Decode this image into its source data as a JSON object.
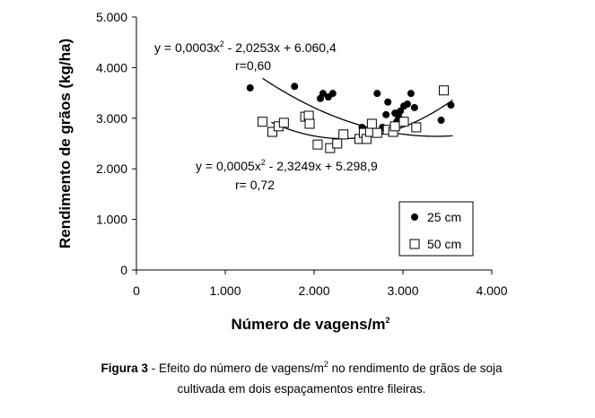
{
  "chart_data": {
    "type": "scatter",
    "y_label": "Rendimento de grãos (kg/ha)",
    "x_label": "Número de vagens/m",
    "x_label_sup": "2",
    "xlim": [
      0,
      4000
    ],
    "ylim": [
      0,
      5000
    ],
    "xticks": [
      0,
      {
        "value": 1000,
        "label": "1.000"
      },
      {
        "value": 2000,
        "label": "2.000"
      },
      {
        "value": 3000,
        "label": "3.000"
      },
      {
        "value": 4000,
        "label": "4.000"
      }
    ],
    "yticks": [
      0,
      {
        "value": 1000,
        "label": "1.000"
      },
      {
        "value": 2000,
        "label": "2.000"
      },
      {
        "value": 3000,
        "label": "3.000"
      },
      {
        "value": 4000,
        "label": "4.000"
      },
      {
        "value": 5000,
        "label": "5.000"
      }
    ],
    "grid": false,
    "legend_position": "lower-right",
    "series": [
      {
        "name": "25 cm",
        "marker": "circle",
        "color": "#000000",
        "x": [
          1280,
          1780,
          2070,
          2100,
          2160,
          2210,
          2540,
          2710,
          2770,
          2810,
          2830,
          2910,
          2930,
          2950,
          2970,
          3010,
          3050,
          3090,
          3130,
          3430,
          3540
        ],
        "values": [
          3600,
          3630,
          3390,
          3490,
          3420,
          3490,
          2820,
          3490,
          2820,
          3070,
          3320,
          3100,
          2930,
          3030,
          3140,
          3240,
          3280,
          3490,
          3210,
          2960,
          3260
        ],
        "trendline": {
          "coefficients": [
            0.0003,
            -2.0253,
            6060.4
          ],
          "xrange": [
            1420,
            3560
          ]
        },
        "equation": [
          "y = 0,0003x",
          "2",
          " - 2,0253x + 6.060,4"
        ],
        "r_label": "r=0,60"
      },
      {
        "name": "50 cm",
        "marker": "square",
        "color": "#000000",
        "x": [
          1420,
          1530,
          1600,
          1660,
          1900,
          1940,
          1950,
          2040,
          2180,
          2260,
          2330,
          2510,
          2560,
          2590,
          2630,
          2650,
          2710,
          2830,
          2890,
          2910,
          3010,
          3150,
          3460
        ],
        "values": [
          2930,
          2730,
          2840,
          2910,
          3030,
          3050,
          2890,
          2480,
          2410,
          2500,
          2680,
          2590,
          2710,
          2590,
          2730,
          2890,
          2710,
          2770,
          2730,
          2840,
          2930,
          2820,
          3550
        ],
        "trendline": {
          "coefficients": [
            0.0005,
            -2.3249,
            5298.9
          ],
          "xrange": [
            1520,
            3560
          ]
        },
        "equation": [
          "y = 0,0005x",
          "2",
          " - 2,3249x + 5.298,9"
        ],
        "r_label": "r= 0,72"
      }
    ],
    "caption": {
      "label": "Figura 3",
      "line1": [
        " - Efeito do número de vagens/m",
        "2",
        " no rendimento de grãos de soja"
      ],
      "line2": "cultivada em dois espaçamentos entre fileiras."
    }
  }
}
